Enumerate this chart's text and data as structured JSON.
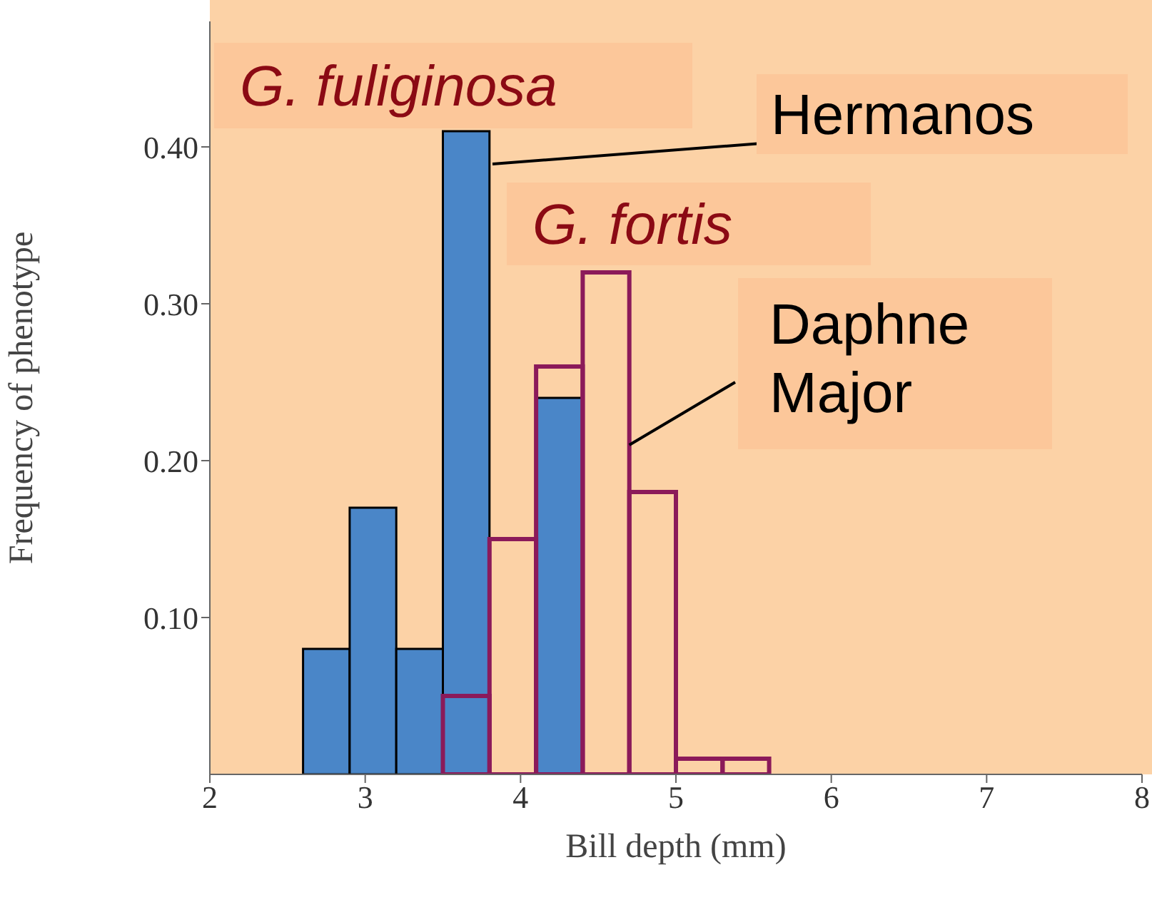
{
  "chart_data": {
    "type": "histogram",
    "xlabel": "Bill depth (mm)",
    "ylabel": "Frequency of phenotype",
    "bins": [
      2.6,
      2.9,
      3.2,
      3.5,
      3.8,
      4.1,
      4.4,
      4.7,
      5.0,
      5.3,
      5.6
    ],
    "series": [
      {
        "color": "#4a86c8",
        "values": [
          0.08,
          0.17,
          0.08,
          0.41,
          0,
          0.24,
          null,
          null,
          null,
          null
        ]
      },
      {
        "color": "#8b1a5a",
        "values": [
          null,
          null,
          null,
          0.05,
          0.15,
          0.26,
          0.32,
          0.18,
          0.01,
          0.01
        ]
      }
    ],
    "annotations": [
      "G. fuliginosa",
      "Hermanos",
      "G. fortis",
      {
        "text": "Daphne Major",
        "x": 4.7,
        "y": 0.21
      }
    ],
    "xlim": [
      2,
      8
    ],
    "xticks": [
      2,
      3,
      4,
      5,
      6,
      7,
      8
    ],
    "ylim": [
      0,
      0.48
    ],
    "yticks": [
      {
        "value": 0.1,
        "label": "0.10"
      },
      {
        "value": 0.2,
        "label": "0.20"
      },
      {
        "value": 0.3,
        "label": "0.30"
      },
      {
        "value": 0.4,
        "label": "0.40"
      }
    ]
  }
}
